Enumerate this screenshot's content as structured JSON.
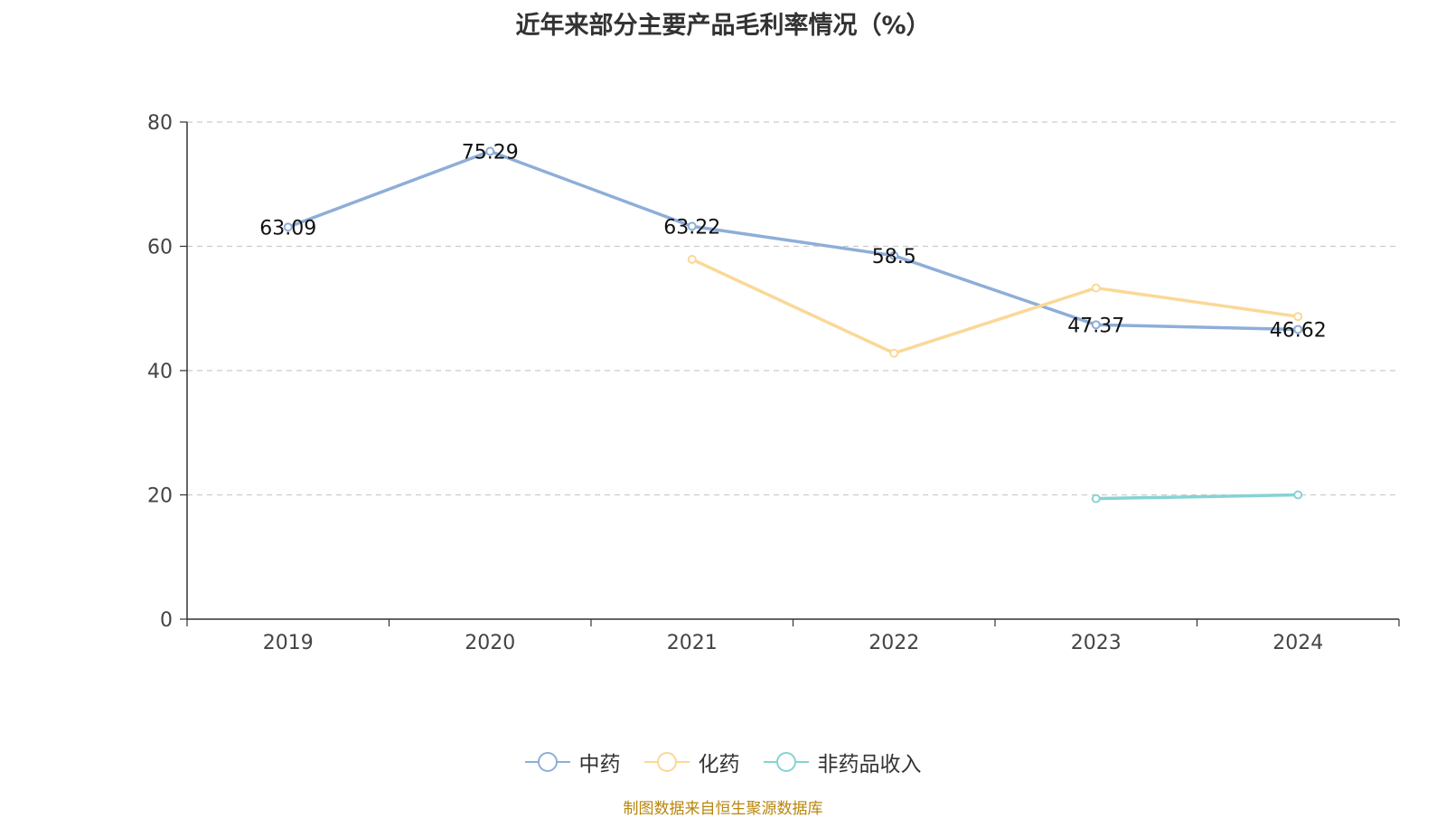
{
  "chart_data": {
    "type": "line",
    "title": "近年来部分主要产品毛利率情况（%）",
    "categories": [
      "2019",
      "2020",
      "2021",
      "2022",
      "2023",
      "2024"
    ],
    "ylim": [
      0,
      80
    ],
    "yticks": [
      0,
      20,
      40,
      60,
      80
    ],
    "grid": true,
    "legend_position": "bottom",
    "series": [
      {
        "name": "中药",
        "color": "#8eaed8",
        "values": [
          63.09,
          75.29,
          63.22,
          58.5,
          47.37,
          46.62
        ],
        "labels": [
          "63.09",
          "75.29",
          "63.22",
          "58.5",
          "47.37",
          "46.62"
        ]
      },
      {
        "name": "化药",
        "color": "#fad897",
        "values": [
          null,
          null,
          57.9,
          42.8,
          53.3,
          48.7
        ],
        "labels": []
      },
      {
        "name": "非药品收入",
        "color": "#86d3d3",
        "values": [
          null,
          null,
          null,
          null,
          19.4,
          20.0
        ],
        "labels": []
      }
    ]
  },
  "source_note": "制图数据来自恒生聚源数据库"
}
